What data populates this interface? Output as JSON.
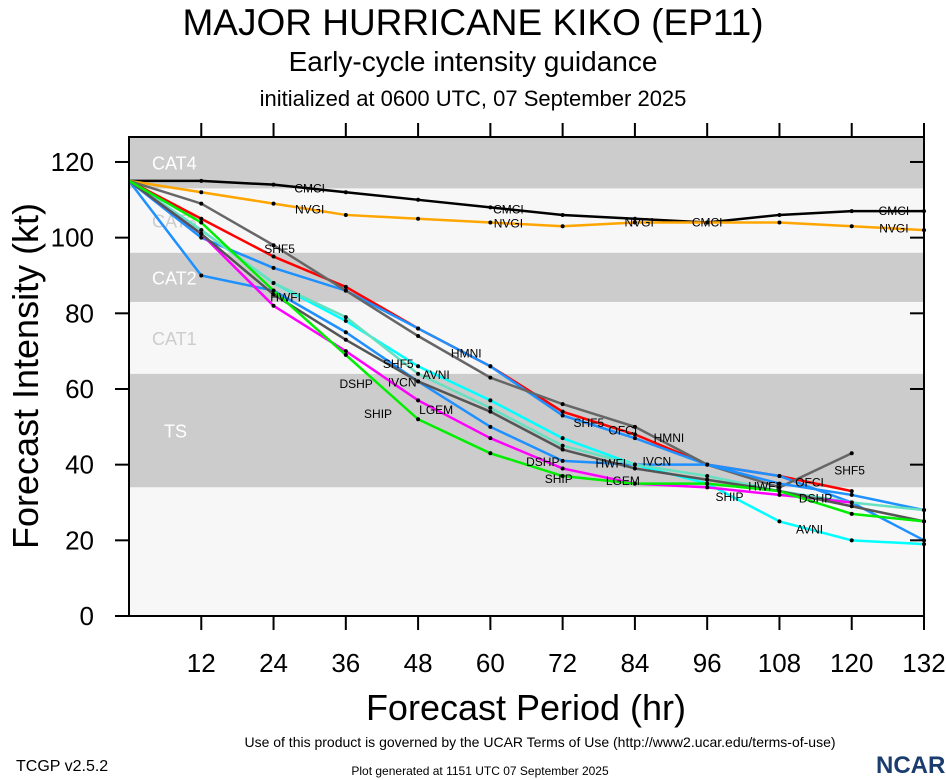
{
  "chart_data": {
    "type": "line",
    "title": "MAJOR HURRICANE KIKO (EP11)",
    "subtitle": "Early-cycle intensity guidance",
    "initialized": "initialized at 0600 UTC, 07 September 2025",
    "xlabel": "Forecast Period (hr)",
    "ylabel": "Forecast Intensity (kt)",
    "xlim": [
      0,
      132
    ],
    "ylim": [
      0,
      126.6
    ],
    "x_ticks": [
      12,
      24,
      36,
      48,
      60,
      72,
      84,
      96,
      108,
      120,
      132
    ],
    "y_ticks": [
      0,
      20,
      40,
      60,
      80,
      100,
      120
    ],
    "bands": [
      {
        "label": "CAT4",
        "from": 113,
        "to": 126.6,
        "shade": "#cccccc"
      },
      {
        "label": "CAT3",
        "from": 96,
        "to": 113,
        "shade": "#f7f7f7"
      },
      {
        "label": "CAT2",
        "from": 83,
        "to": 96,
        "shade": "#cccccc"
      },
      {
        "label": "CAT1",
        "from": 64,
        "to": 83,
        "shade": "#f7f7f7"
      },
      {
        "label": "TS",
        "from": 34,
        "to": 64,
        "shade": "#cccccc"
      },
      {
        "label": "",
        "from": 0,
        "to": 34,
        "shade": "#f7f7f7"
      }
    ],
    "x": [
      0,
      12,
      24,
      36,
      48,
      60,
      72,
      84,
      96,
      108,
      120,
      132
    ],
    "series": [
      {
        "name": "CMCI",
        "color": "#000000",
        "values": [
          115,
          115,
          114,
          112,
          110,
          108,
          106,
          105,
          104,
          106,
          107,
          107
        ],
        "label_hours": [
          30,
          63,
          96,
          127
        ]
      },
      {
        "name": "NVGI",
        "color": "#ffa500",
        "values": [
          115,
          112,
          109,
          106,
          105,
          104,
          103,
          104,
          104,
          104,
          103,
          102
        ],
        "label_hours": [
          30,
          63,
          96,
          127
        ]
      },
      {
        "name": "OFCI",
        "color": "#ff0000",
        "values": [
          115,
          105,
          95,
          87,
          76,
          66,
          54,
          48,
          40,
          37,
          33,
          null
        ],
        "label_hours": [
          82,
          113
        ]
      },
      {
        "name": "HMNI",
        "color": "#1e90ff",
        "values": [
          115,
          100,
          92,
          86,
          76,
          66,
          53,
          47,
          40,
          37,
          30,
          20
        ],
        "label_hours": [
          56,
          84
        ]
      },
      {
        "name": "SHF5",
        "color": "#666666",
        "values": [
          115,
          109,
          98,
          86,
          74,
          63,
          56,
          50,
          40,
          34,
          43,
          null
        ],
        "label_hours": [
          25,
          56,
          82,
          114
        ]
      },
      {
        "name": "AVNI",
        "color": "#00ffff",
        "values": [
          115,
          102,
          88,
          78,
          66,
          57,
          47,
          40,
          35,
          25,
          20,
          19
        ],
        "label_hours": [
          51,
          113
        ]
      },
      {
        "name": "HWFI",
        "color": "#1e90ff",
        "values": [
          115,
          90,
          86,
          75,
          62,
          50,
          41,
          40,
          40,
          35,
          32,
          28
        ],
        "label_hours": [
          26,
          80,
          111
        ]
      },
      {
        "name": "IVCN",
        "color": "#66e0c0",
        "values": [
          115,
          102,
          88,
          79,
          64,
          55,
          45,
          40,
          37,
          33,
          30,
          28
        ],
        "label_hours": [
          51,
          82
        ]
      },
      {
        "name": "LGEM",
        "color": "#ff00ff",
        "values": [
          115,
          101,
          82,
          70,
          57,
          47,
          39,
          35,
          34,
          32,
          30,
          null
        ],
        "label_hours": [
          51,
          82
        ]
      },
      {
        "name": "DSHP",
        "color": "#555555",
        "values": [
          115,
          101,
          85,
          73,
          62,
          54,
          44,
          39,
          36,
          33,
          29,
          25
        ],
        "label_hours": [
          49,
          80,
          114
        ]
      },
      {
        "name": "SHIP",
        "color": "#00ee00",
        "values": [
          115,
          104,
          86,
          69,
          52,
          43,
          37,
          35,
          35,
          33,
          27,
          25
        ],
        "label_hours": [
          47,
          77,
          111
        ]
      }
    ]
  },
  "footer": {
    "terms": "Use of this product is governed by the UCAR Terms of Use (http://www2.ucar.edu/terms-of-use)",
    "version": "TCGP v2.5.2",
    "generated": "Plot generated at 1151 UTC   07 September 2025",
    "logo": "NCAR"
  }
}
